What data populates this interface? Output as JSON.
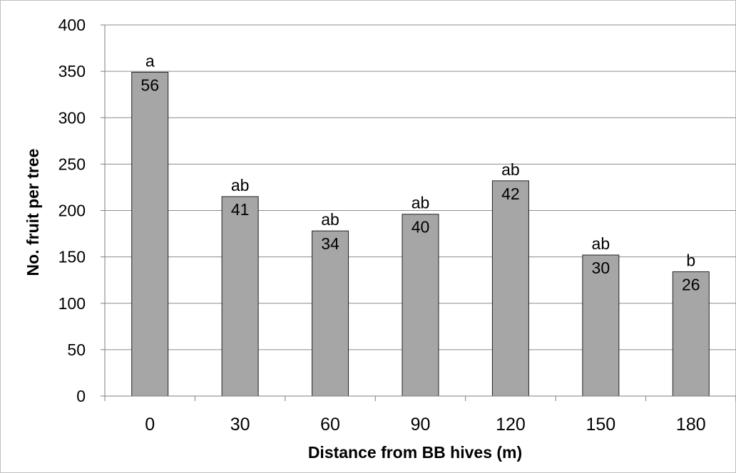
{
  "chart_data": {
    "type": "bar",
    "title": "",
    "xlabel": "Distance from BB hives (m)",
    "ylabel": "No. fruit per tree",
    "categories": [
      "0",
      "30",
      "60",
      "90",
      "120",
      "150",
      "180"
    ],
    "values": [
      349,
      215,
      178,
      196,
      232,
      152,
      134
    ],
    "data_labels": [
      "56",
      "41",
      "34",
      "40",
      "42",
      "30",
      "26"
    ],
    "significance_letters": [
      "a",
      "ab",
      "ab",
      "ab",
      "ab",
      "ab",
      "b"
    ],
    "ylim": [
      0,
      400
    ],
    "yticks": [
      "0",
      "50",
      "100",
      "150",
      "200",
      "250",
      "300",
      "350",
      "400"
    ],
    "ytick_values": [
      0,
      50,
      100,
      150,
      200,
      250,
      300,
      350,
      400
    ],
    "grid": "horizontal",
    "legend": "none",
    "colors": {
      "bar_fill": "#a6a6a6",
      "bar_stroke": "#222222",
      "gridline": "#8c8c8c",
      "axis": "#7f7f7f",
      "frame": "#bfbfbf"
    }
  }
}
